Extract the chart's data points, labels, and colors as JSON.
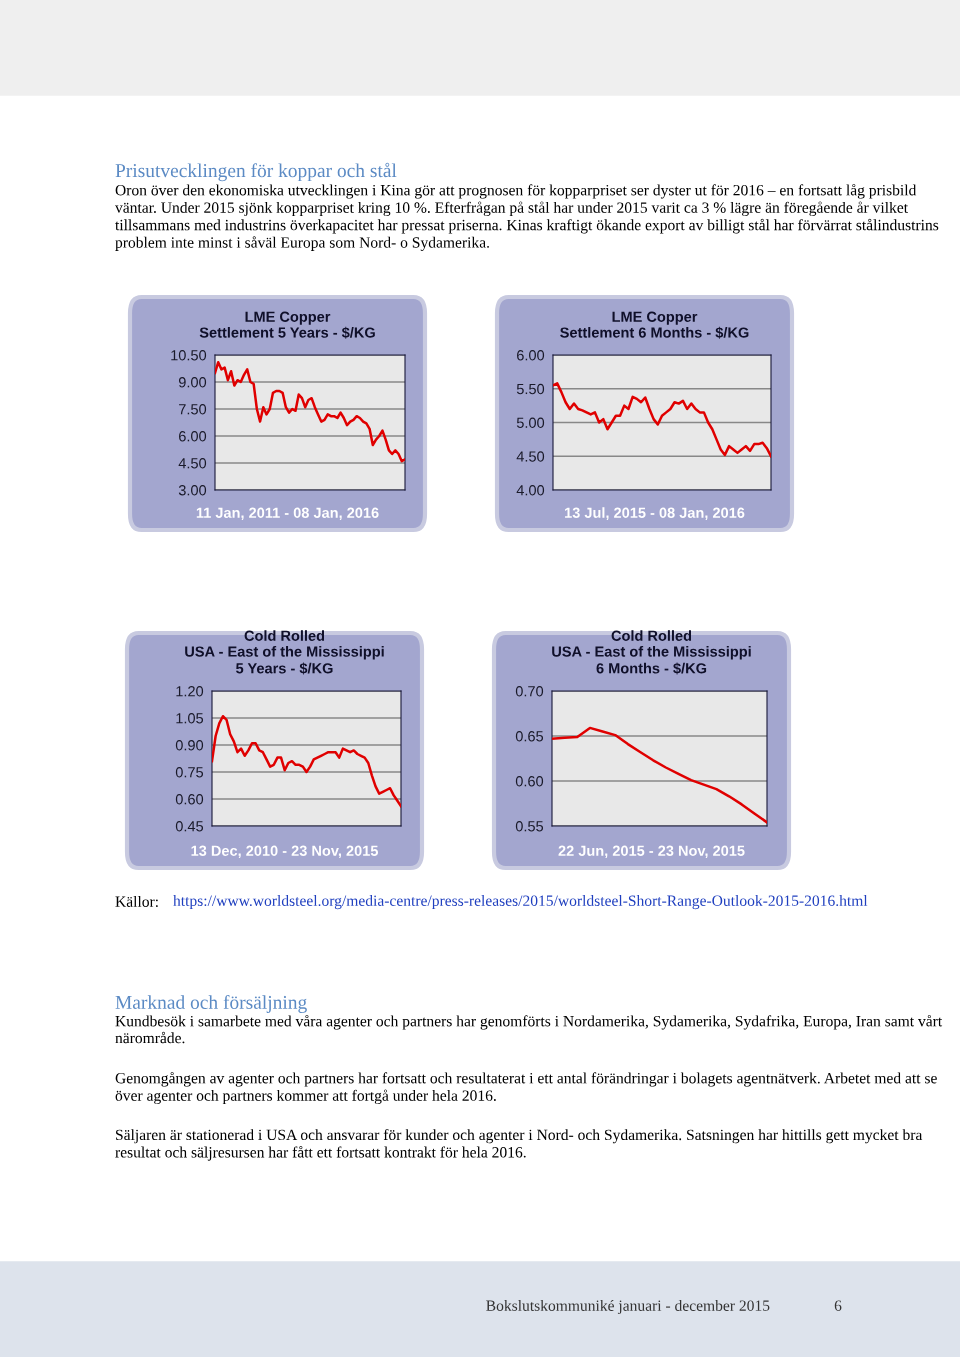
{
  "chart_data": [
    {
      "type": "other",
      "title": "Prisutvecklingen för koppar och stål",
      "annotations": [
        "Oron över den ekonomiska utvecklingen i Kina gör att prognosen för kopparpriset ser dyster ut för 2016 – en fortsatt låg prisbild väntar. Under 2015 sjönk kopparpriset kring 10 %. Efterfrågan på stål har under 2015 varit ca 3 % lägre än föregående år vilket tillsammans med industrins överkapacitet har pressat priserna. Kinas kraftigt ökande export av billigt stål har förvärrat stålindustrins problem inte minst i såväl Europa som Nord- o Sydamerika."
      ]
    },
    {
      "type": "line",
      "title": "LME Copper",
      "subtitle": "Settlement 5 Years - $/KG",
      "xlabel": "11 Jan, 2011 - 08 Jan, 2016",
      "categories": [
        null,
        null,
        null,
        null,
        null,
        null,
        null,
        null,
        null,
        null,
        null,
        null,
        null,
        null,
        null,
        null,
        null,
        null,
        null,
        null,
        null,
        null,
        null,
        null,
        null,
        null,
        null,
        null,
        null,
        null,
        null,
        null,
        null,
        null,
        null,
        null,
        null,
        null,
        null,
        null,
        null,
        null,
        null,
        null,
        null,
        null,
        null,
        null,
        null,
        null,
        null,
        null,
        null,
        null,
        null,
        null,
        null,
        null,
        null,
        null
      ],
      "series": [
        {
          "color": "#e00000",
          "values": [
            9.5,
            10.1,
            9.7,
            9.8,
            9.1,
            9.6,
            8.8,
            9.1,
            9.0,
            9.4,
            9.7,
            9.0,
            8.9,
            7.5,
            6.8,
            7.6,
            7.2,
            7.5,
            8.4,
            8.5,
            8.5,
            8.4,
            7.6,
            7.3,
            7.5,
            7.4,
            8.3,
            8.1,
            7.6,
            8.0,
            8.1,
            7.6,
            7.2,
            6.8,
            6.9,
            7.2,
            7.1,
            7.1,
            7.0,
            7.3,
            7.0,
            6.6,
            6.8,
            6.9,
            7.1,
            7.0,
            6.8,
            6.7,
            6.4,
            5.5,
            5.8,
            6.0,
            6.3,
            5.8,
            5.2,
            5.0,
            5.2,
            5.0,
            4.6,
            4.7
          ]
        }
      ],
      "ylim": [
        3.0,
        10.5
      ],
      "yticks": [
        {
          "value": 3.0,
          "label": "3.00"
        },
        {
          "value": 4.5,
          "label": "4.50"
        },
        {
          "value": 6.0,
          "label": "6.00"
        },
        {
          "value": 7.5,
          "label": "7.50"
        },
        {
          "value": 9.0,
          "label": "9.00"
        },
        {
          "value": 10.5,
          "label": "10.50"
        }
      ],
      "grid": "y",
      "tick_labels": "y",
      "marker": "none",
      "line_style": "solid"
    },
    {
      "type": "line",
      "title": "LME Copper",
      "subtitle": "Settlement 6 Months - $/KG",
      "xlabel": "13 Jul, 2015 - 08 Jan, 2016",
      "categories": [
        null,
        null,
        null,
        null,
        null,
        null,
        null,
        null,
        null,
        null,
        null,
        null,
        null,
        null,
        null,
        null,
        null,
        null,
        null,
        null,
        null,
        null,
        null,
        null,
        null,
        null,
        null,
        null,
        null,
        null,
        null,
        null,
        null,
        null,
        null,
        null,
        null,
        null,
        null,
        null,
        null,
        null,
        null,
        null,
        null,
        null,
        null,
        null,
        null,
        null,
        null,
        null,
        null
      ],
      "series": [
        {
          "color": "#e00000",
          "values": [
            5.55,
            5.58,
            5.45,
            5.3,
            5.2,
            5.28,
            5.2,
            5.18,
            5.15,
            5.12,
            5.15,
            5.0,
            5.05,
            4.9,
            5.0,
            5.1,
            5.1,
            5.25,
            5.2,
            5.38,
            5.35,
            5.3,
            5.37,
            5.2,
            5.05,
            4.97,
            5.1,
            5.15,
            5.2,
            5.3,
            5.28,
            5.32,
            5.2,
            5.28,
            5.2,
            5.15,
            5.15,
            5.0,
            4.9,
            4.75,
            4.6,
            4.52,
            4.65,
            4.6,
            4.55,
            4.6,
            4.65,
            4.58,
            4.68,
            4.68,
            4.7,
            4.62,
            4.5
          ]
        }
      ],
      "ylim": [
        4.0,
        6.0
      ],
      "yticks": [
        {
          "value": 4.0,
          "label": "4.00"
        },
        {
          "value": 4.5,
          "label": "4.50"
        },
        {
          "value": 5.0,
          "label": "5.00"
        },
        {
          "value": 5.5,
          "label": "5.50"
        },
        {
          "value": 6.0,
          "label": "6.00"
        }
      ],
      "grid": "y",
      "tick_labels": "y",
      "marker": "none",
      "line_style": "solid"
    },
    {
      "type": "line",
      "title": "Cold Rolled",
      "subtitle": "USA - East of the Mississippi\n5 Years - $/KG",
      "xlabel": "13 Dec, 2010 - 23 Nov, 2015",
      "categories": [
        null,
        null,
        null,
        null,
        null,
        null,
        null,
        null,
        null,
        null,
        null,
        null,
        null,
        null,
        null,
        null,
        null,
        null,
        null,
        null,
        null,
        null,
        null,
        null,
        null,
        null,
        null,
        null,
        null,
        null,
        null,
        null,
        null,
        null,
        null,
        null,
        null,
        null,
        null,
        null,
        null,
        null,
        null,
        null,
        null,
        null,
        null,
        null,
        null,
        null,
        null,
        null,
        null
      ],
      "series": [
        {
          "color": "#e00000",
          "values": [
            0.81,
            0.95,
            1.02,
            1.06,
            1.04,
            0.96,
            0.92,
            0.86,
            0.88,
            0.84,
            0.87,
            0.91,
            0.91,
            0.87,
            0.86,
            0.82,
            0.78,
            0.79,
            0.83,
            0.83,
            0.76,
            0.8,
            0.81,
            0.79,
            0.79,
            0.78,
            0.75,
            0.78,
            0.82,
            0.83,
            0.84,
            0.85,
            0.86,
            0.86,
            0.86,
            0.83,
            0.88,
            0.87,
            0.86,
            0.87,
            0.85,
            0.84,
            0.83,
            0.8,
            0.73,
            0.67,
            0.63,
            0.64,
            0.65,
            0.66,
            0.62,
            0.59,
            0.56
          ]
        }
      ],
      "ylim": [
        0.45,
        1.2
      ],
      "yticks": [
        {
          "value": 0.45,
          "label": "0.45"
        },
        {
          "value": 0.6,
          "label": "0.60"
        },
        {
          "value": 0.75,
          "label": "0.75"
        },
        {
          "value": 0.9,
          "label": "0.90"
        },
        {
          "value": 1.05,
          "label": "1.05"
        },
        {
          "value": 1.2,
          "label": "1.20"
        }
      ],
      "grid": "y",
      "tick_labels": "y",
      "marker": "none",
      "line_style": "solid"
    },
    {
      "type": "line",
      "title": "Cold Rolled",
      "subtitle": "USA - East of the Mississippi\n6 Months - $/KG",
      "xlabel": "22 Jun, 2015 - 23 Nov, 2015",
      "categories": [
        null,
        null,
        null,
        null,
        null,
        null,
        null,
        null,
        null,
        null,
        null,
        null,
        null,
        null,
        null,
        null,
        null,
        null
      ],
      "series": [
        {
          "color": "#e00000",
          "values": [
            0.647,
            0.648,
            0.649,
            0.659,
            0.655,
            0.651,
            0.641,
            0.632,
            0.623,
            0.615,
            0.608,
            0.601,
            0.596,
            0.591,
            0.583,
            0.574,
            0.564,
            0.554
          ]
        }
      ],
      "ylim": [
        0.55,
        0.7
      ],
      "yticks": [
        {
          "value": 0.55,
          "label": "0.55"
        },
        {
          "value": 0.6,
          "label": "0.60"
        },
        {
          "value": 0.65,
          "label": "0.65"
        },
        {
          "value": 0.7,
          "label": "0.70"
        }
      ],
      "grid": "y",
      "tick_labels": "y",
      "marker": "none",
      "line_style": "solid"
    },
    {
      "type": "other",
      "annotations": [
        "Källor:",
        "https://www.worldsteel.org/media-centre/press-releases/2015/worldsteel-Short-Range-Outlook-2015-2016.html"
      ]
    },
    {
      "type": "other",
      "title": "Marknad och försäljning",
      "annotations": [
        "Kundbesök i samarbete med våra agenter och partners har genomförts i Nordamerika, Sydamerika, Sydafrika, Europa, Iran samt vårt närområde.",
        "Genomgången av agenter och partners har fortsatt och resultaterat i ett antal förändringar i bolagets agentnätverk. Arbetet med att se över agenter och partners kommer att fortgå under hela 2016.",
        "Säljaren är stationerad i USA och ansvarar för kunder och agenter i Nord- och Sydamerika. Satsningen har hittills gett mycket bra resultat och säljresursen har fått ett fortsatt kontrakt för hela 2016.",
        "Bokslutskommuniké januari - december 2015",
        "6"
      ]
    }
  ]
}
